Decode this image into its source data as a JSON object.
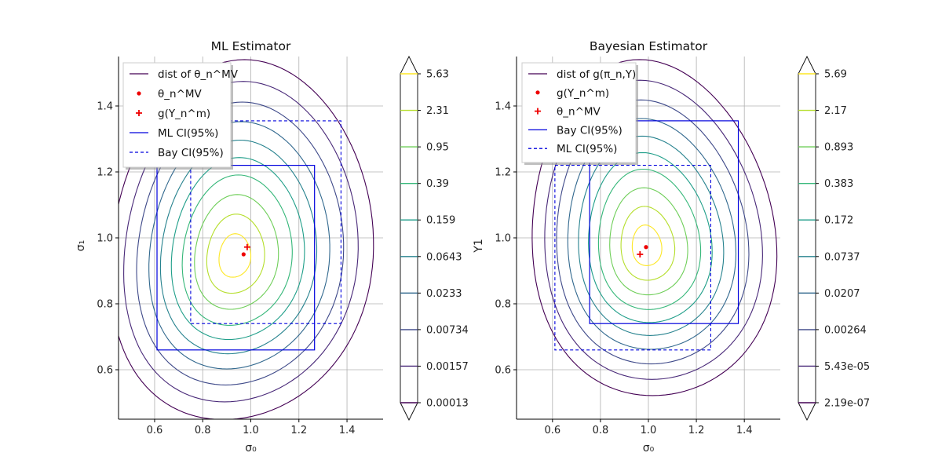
{
  "chart_data": [
    {
      "type": "contour",
      "title": "ML Estimator",
      "xlabel": "σ₀",
      "ylabel": "σ₁",
      "xlim": [
        0.45,
        1.55
      ],
      "ylim": [
        0.45,
        1.55
      ],
      "xticks": [
        "0.6",
        "0.8",
        "1.0",
        "1.2",
        "1.4"
      ],
      "yticks": [
        "0.6",
        "0.8",
        "1.0",
        "1.2",
        "1.4"
      ],
      "grid": true,
      "legend_position": "top-left",
      "legend": [
        {
          "label": "dist of θ_n^MV",
          "style": "contour-line"
        },
        {
          "label": "θ_n^MV",
          "style": "red-dot"
        },
        {
          "label": "g(Y_n^m)",
          "style": "red-plus"
        },
        {
          "label": "ML CI(95%)",
          "style": "blue-solid"
        },
        {
          "label": "Bay CI(95%)",
          "style": "blue-dashed"
        }
      ],
      "contour_levels": [
        "0.00013",
        "0.00157",
        "0.00734",
        "0.0233",
        "0.0643",
        "0.159",
        "0.39",
        "0.95",
        "2.31",
        "5.63"
      ],
      "contour_center": [
        0.93,
        0.94
      ],
      "point_dot": [
        0.97,
        0.95
      ],
      "point_plus": [
        0.985,
        0.972
      ],
      "ci_solid": {
        "x": [
          0.61,
          1.265
        ],
        "y": [
          0.66,
          1.22
        ]
      },
      "ci_dashed": {
        "x": [
          0.75,
          1.375
        ],
        "y": [
          0.74,
          1.355
        ]
      }
    },
    {
      "type": "contour",
      "title": "Bayesian Estimator",
      "xlabel": "σ₀",
      "ylabel": "Y1",
      "xlim": [
        0.45,
        1.55
      ],
      "ylim": [
        0.45,
        1.55
      ],
      "xticks": [
        "0.6",
        "0.8",
        "1.0",
        "1.2",
        "1.4"
      ],
      "yticks": [
        "0.6",
        "0.8",
        "1.0",
        "1.2",
        "1.4"
      ],
      "grid": true,
      "legend_position": "top-left",
      "legend": [
        {
          "label": "dist of g(π_n,Y)",
          "style": "contour-line"
        },
        {
          "label": "g(Y_n^m)",
          "style": "red-dot"
        },
        {
          "label": "θ_n^MV",
          "style": "red-plus"
        },
        {
          "label": "Bay CI(95%)",
          "style": "blue-solid"
        },
        {
          "label": "ML CI(95%)",
          "style": "blue-dashed"
        }
      ],
      "contour_levels": [
        "2.19e-07",
        "5.43e-05",
        "0.00264",
        "0.0207",
        "0.0737",
        "0.172",
        "0.383",
        "0.893",
        "2.17",
        "5.69"
      ],
      "contour_center": [
        0.99,
        0.97
      ],
      "point_dot": [
        0.99,
        0.972
      ],
      "point_plus": [
        0.965,
        0.95
      ],
      "ci_solid": {
        "x": [
          0.755,
          1.375
        ],
        "y": [
          0.74,
          1.355
        ]
      },
      "ci_dashed": {
        "x": [
          0.61,
          1.26
        ],
        "y": [
          0.66,
          1.22
        ]
      }
    }
  ],
  "colors": {
    "levels": [
      "#440154",
      "#482878",
      "#3e4989",
      "#31688e",
      "#26828e",
      "#1f9e89",
      "#35b779",
      "#6ece58",
      "#b5de2b",
      "#fde725"
    ],
    "ci": "#0000dd",
    "point": "#ee0000",
    "grid": "#b0b0b0"
  }
}
